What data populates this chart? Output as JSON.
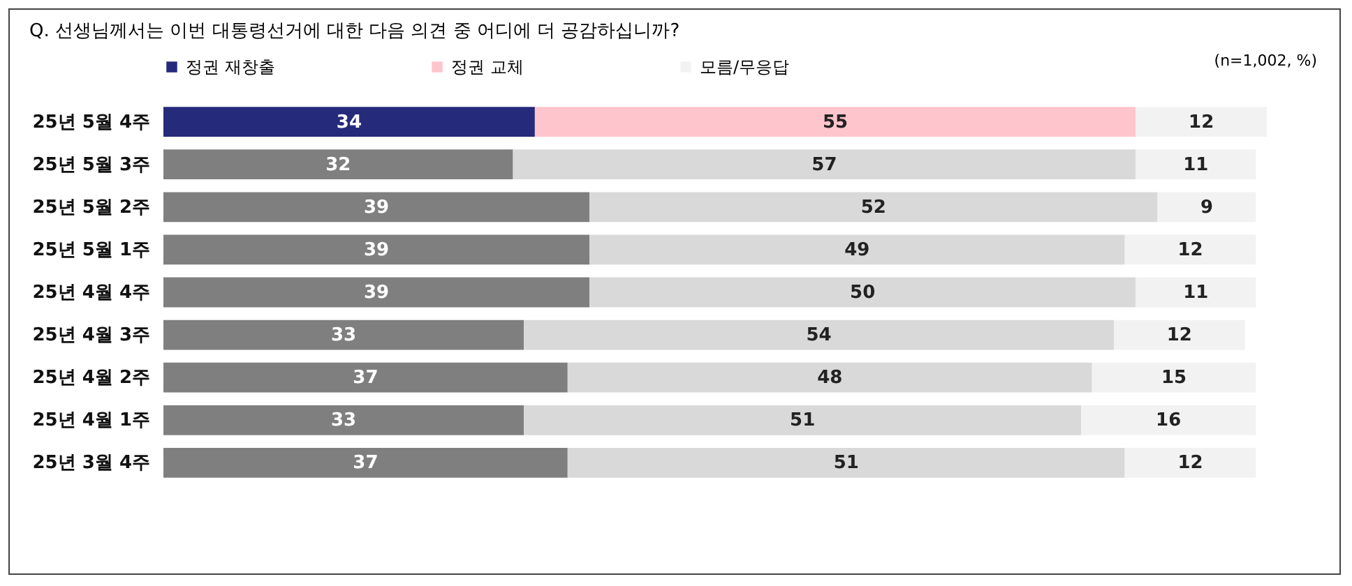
{
  "chart_data": {
    "type": "bar",
    "orientation": "horizontal",
    "stacked": true,
    "data_labels": true,
    "legend": "top",
    "title": "Q. 선생님께서는 이번 대통령선거에 대한 다음 의견 중 어디에 더 공감하십니까?",
    "annotations": [
      "(n=1,002, %)"
    ],
    "categories": [
      "25년 5월 4주",
      "25년 5월 3주",
      "25년 5월 2주",
      "25년 5월 1주",
      "25년 4월 4주",
      "25년 4월 3주",
      "25년 4월 2주",
      "25년 4월 1주",
      "25년 3월 4주"
    ],
    "series": [
      {
        "name": "정권 재창출",
        "color": "#262a7a",
        "colors": [
          "#262a7a",
          "#7f7f7f",
          "#7f7f7f",
          "#7f7f7f",
          "#7f7f7f",
          "#7f7f7f",
          "#7f7f7f",
          "#7f7f7f",
          "#7f7f7f"
        ],
        "values": [
          34,
          32,
          39,
          39,
          39,
          33,
          37,
          33,
          37
        ]
      },
      {
        "name": "정권 교체",
        "color": "#ffc5cc",
        "colors": [
          "#ffc5cc",
          "#d9d9d9",
          "#d9d9d9",
          "#d9d9d9",
          "#d9d9d9",
          "#d9d9d9",
          "#d9d9d9",
          "#d9d9d9",
          "#d9d9d9"
        ],
        "values": [
          55,
          57,
          52,
          49,
          50,
          54,
          48,
          51,
          51
        ]
      },
      {
        "name": "모름/무응답",
        "color": "#f2f2f2",
        "colors": [
          "#f2f2f2",
          "#f2f2f2",
          "#f2f2f2",
          "#f2f2f2",
          "#f2f2f2",
          "#f2f2f2",
          "#f2f2f2",
          "#f2f2f2",
          "#f2f2f2"
        ],
        "values": [
          12,
          11,
          9,
          12,
          11,
          12,
          15,
          16,
          12
        ]
      }
    ]
  }
}
